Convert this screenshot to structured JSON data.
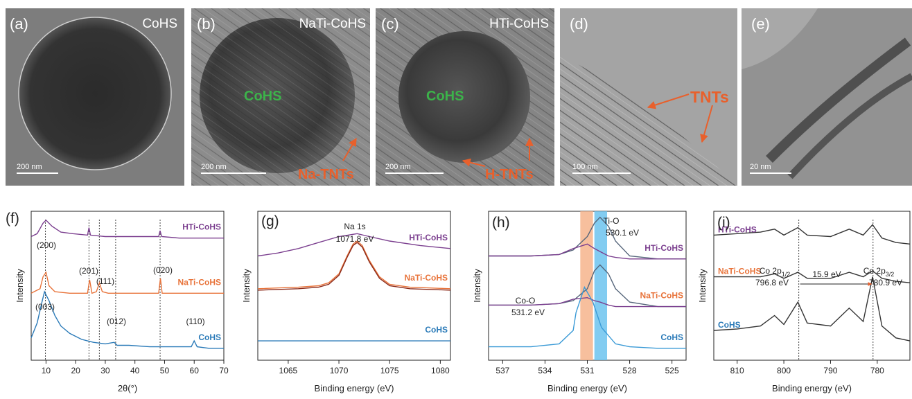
{
  "micrographs": [
    {
      "panel": "(a)",
      "sample": "CoHS",
      "scale_bar": "200 nm"
    },
    {
      "panel": "(b)",
      "sample": "NaTi-CoHS",
      "scale_bar": "200 nm",
      "core": "CoHS",
      "tubes": "Na-TNTs"
    },
    {
      "panel": "(c)",
      "sample": "HTi-CoHS",
      "scale_bar": "200 nm",
      "core": "CoHS",
      "tubes": "H-TNTs"
    },
    {
      "panel": "(d)",
      "scale_bar": "100 nm",
      "tubes": "TNTs"
    },
    {
      "panel": "(e)",
      "scale_bar": "20 nm"
    }
  ],
  "chart_data": [
    {
      "type": "line",
      "title": "(f)",
      "x_label": "2θ(°)",
      "y_label": "Intensity",
      "xlim": [
        5,
        70
      ],
      "ylim": [
        0,
        10
      ],
      "xticks": [
        10,
        20,
        30,
        40,
        50,
        60,
        70
      ],
      "ref_lines": [
        9.8,
        24.5,
        28,
        33.5,
        48.5
      ],
      "series": [
        {
          "name": "HTi-CoHS",
          "color": "#7b3f8f",
          "x": [
            5,
            7,
            9,
            10,
            12,
            15,
            19,
            24,
            24.5,
            25,
            30,
            35,
            40,
            48,
            48.5,
            49,
            55,
            60,
            70
          ],
          "values": [
            8.3,
            8.5,
            9.2,
            9.4,
            9.0,
            8.6,
            8.5,
            8.4,
            8.9,
            8.4,
            8.3,
            8.3,
            8.3,
            8.3,
            8.7,
            8.3,
            8.2,
            8.2,
            8.2
          ]
        },
        {
          "name": "NaTi-CoHS",
          "color": "#e8733a",
          "x": [
            5,
            8,
            9,
            10,
            11,
            13,
            18,
            23,
            24,
            24.7,
            25.5,
            27,
            28,
            29,
            31,
            35,
            40,
            47,
            48,
            48.6,
            49.2,
            52,
            60,
            70
          ],
          "values": [
            4.5,
            4.8,
            5.6,
            5.9,
            5.0,
            4.6,
            4.5,
            4.5,
            4.5,
            5.4,
            4.5,
            4.6,
            5.2,
            4.6,
            4.5,
            4.5,
            4.5,
            4.5,
            4.5,
            5.5,
            4.5,
            4.5,
            4.5,
            4.5
          ]
        },
        {
          "name": "CoHS",
          "color": "#2a7ab8",
          "x": [
            5,
            7,
            8.5,
            9.5,
            11,
            13,
            15,
            18,
            22,
            26,
            30,
            33,
            34,
            38,
            45,
            55,
            59,
            60,
            61,
            65,
            70
          ],
          "values": [
            1.5,
            2.5,
            3.8,
            4.6,
            4.0,
            3.0,
            2.3,
            1.8,
            1.4,
            1.2,
            1.1,
            1.2,
            1.0,
            1.0,
            0.9,
            0.9,
            0.9,
            1.3,
            0.9,
            0.8,
            0.8
          ]
        }
      ],
      "annotations": [
        {
          "text": "(200)"
        },
        {
          "text": "(201)"
        },
        {
          "text": "(111)"
        },
        {
          "text": "(020)"
        },
        {
          "text": "(003)"
        },
        {
          "text": "(012)"
        },
        {
          "text": "(110)"
        }
      ]
    },
    {
      "type": "line",
      "title": "(g)",
      "x_label": "Binding energy (eV)",
      "y_label": "Intensity",
      "xlim": [
        1062,
        1081
      ],
      "ylim": [
        0,
        10
      ],
      "xticks": [
        1065,
        1070,
        1075,
        1080
      ],
      "series": [
        {
          "name": "HTi-CoHS",
          "color": "#7b3f8f",
          "x": [
            1062,
            1064,
            1066,
            1068,
            1070,
            1071.8,
            1073,
            1075,
            1078,
            1081
          ],
          "values": [
            7.0,
            7.2,
            7.5,
            7.9,
            8.3,
            8.5,
            8.3,
            8.0,
            7.7,
            7.5
          ]
        },
        {
          "name": "NaTi-CoHS",
          "color": "#e8733a",
          "x": [
            1062,
            1066,
            1068,
            1069,
            1070,
            1070.8,
            1071.4,
            1071.8,
            1072.3,
            1073,
            1074,
            1075,
            1077,
            1081
          ],
          "values": [
            4.8,
            4.9,
            5.0,
            5.2,
            5.8,
            7.0,
            7.8,
            8.0,
            7.7,
            6.7,
            5.6,
            5.1,
            4.9,
            4.8
          ]
        },
        {
          "color": "#8b2a1a",
          "x": [
            1062,
            1066,
            1068,
            1069,
            1070,
            1070.8,
            1071.4,
            1071.8,
            1072.3,
            1073,
            1074,
            1075,
            1077,
            1081
          ],
          "values": [
            4.7,
            4.8,
            4.9,
            5.1,
            5.7,
            6.9,
            7.7,
            7.9,
            7.6,
            6.6,
            5.5,
            5.0,
            4.8,
            4.7
          ]
        },
        {
          "name": "CoHS",
          "color": "#2a7ab8",
          "x": [
            1062,
            1066,
            1070,
            1075,
            1081
          ],
          "values": [
            1.3,
            1.3,
            1.3,
            1.3,
            1.3
          ]
        }
      ],
      "annotations": [
        {
          "text": "Na 1s"
        },
        {
          "text": "1071.8 eV"
        }
      ]
    },
    {
      "type": "line",
      "title": "(h)",
      "x_label": "Binding energy (eV)",
      "y_label": "Intensity",
      "xlim": [
        538,
        524
      ],
      "ylim": [
        0,
        10
      ],
      "xticks": [
        537,
        534,
        531,
        528,
        525
      ],
      "bands": [
        {
          "range": [
            531.5,
            530.6
          ],
          "color": "#f6b48c"
        },
        {
          "range": [
            530.5,
            529.6
          ],
          "color": "#6cc3ee"
        }
      ],
      "series": [
        {
          "name": "HTi-CoHS",
          "color": "#55657a",
          "label_color": "#7b3f8f",
          "x": [
            538,
            535,
            533,
            532,
            531,
            530.5,
            530.1,
            529.5,
            529,
            528,
            526,
            524
          ],
          "values": [
            7.0,
            7.0,
            7.1,
            7.4,
            8.3,
            9.2,
            9.6,
            9.0,
            8.0,
            7.0,
            6.8,
            6.8
          ]
        },
        {
          "color": "#7b3f8f",
          "x": [
            538,
            535,
            533,
            532,
            531,
            530.5,
            530.1,
            529.5,
            529,
            528,
            526,
            524
          ],
          "values": [
            7.0,
            7.0,
            7.1,
            7.5,
            7.8,
            7.5,
            7.3,
            7.0,
            6.9,
            6.8,
            6.8,
            6.8
          ]
        },
        {
          "name": "NaTi-CoHS",
          "color": "#55657a",
          "label_color": "#e8733a",
          "x": [
            538,
            535,
            533,
            532,
            531,
            530.5,
            530.1,
            529.5,
            529,
            528,
            526,
            524
          ],
          "values": [
            3.7,
            3.7,
            3.8,
            4.0,
            4.8,
            6.0,
            6.4,
            5.8,
            4.8,
            3.9,
            3.6,
            3.6
          ]
        },
        {
          "color": "#7b3f8f",
          "x": [
            538,
            535,
            533,
            532,
            531,
            530.5,
            530.1,
            529.5,
            529,
            528,
            526,
            524
          ],
          "values": [
            3.7,
            3.7,
            3.8,
            4.1,
            4.2,
            4.0,
            3.9,
            3.7,
            3.6,
            3.6,
            3.6,
            3.6
          ]
        },
        {
          "name": "CoHS",
          "color": "#3a9ad6",
          "label_color": "#2a7ab8",
          "x": [
            538,
            535,
            533,
            532,
            531.8,
            531.2,
            530.6,
            530,
            529,
            528,
            526,
            524
          ],
          "values": [
            0.9,
            0.9,
            1.1,
            2.0,
            3.2,
            4.9,
            3.9,
            2.2,
            1.1,
            0.9,
            0.8,
            0.8
          ]
        }
      ],
      "annotations": [
        {
          "text": "Ti-O"
        },
        {
          "text": "530.1 eV"
        },
        {
          "text": "Co-O"
        },
        {
          "text": "531.2 eV"
        }
      ]
    },
    {
      "type": "line",
      "title": "(i)",
      "x_label": "Binding energy (eV)",
      "y_label": "Intensity",
      "xlim": [
        815,
        773
      ],
      "ylim": [
        0,
        10
      ],
      "xticks": [
        810,
        800,
        790,
        780
      ],
      "ref_lines": [
        796.8,
        780.9
      ],
      "series": [
        {
          "name": "HTi-CoHS",
          "color": "#333333",
          "label_color": "#7b3f8f",
          "x": [
            815,
            810,
            805,
            802,
            800,
            797,
            795,
            790,
            786,
            783,
            781,
            779,
            776,
            773
          ],
          "values": [
            8.4,
            8.5,
            8.6,
            8.8,
            8.4,
            8.9,
            8.4,
            8.3,
            8.8,
            8.4,
            9.1,
            8.2,
            7.9,
            7.8
          ]
        },
        {
          "name": "NaTi-CoHS",
          "color": "#333333",
          "label_color": "#e8733a",
          "x": [
            815,
            810,
            805,
            802,
            800,
            797,
            795,
            790,
            786,
            783,
            781,
            779,
            776,
            773
          ],
          "values": [
            5.6,
            5.6,
            5.6,
            5.8,
            5.5,
            5.9,
            5.5,
            5.5,
            5.9,
            5.6,
            6.0,
            5.5,
            5.3,
            5.2
          ]
        },
        {
          "name": "CoHS",
          "color": "#333333",
          "label_color": "#2a7ab8",
          "x": [
            815,
            810,
            805,
            802,
            800,
            797,
            795,
            790,
            786,
            783,
            781,
            779,
            776,
            773
          ],
          "values": [
            2.0,
            2.1,
            2.3,
            3.0,
            2.4,
            3.9,
            2.5,
            2.3,
            3.5,
            2.6,
            5.6,
            2.3,
            1.5,
            1.3
          ]
        }
      ],
      "annotations": [
        {
          "text": "Co 2p",
          "sub": "1/2"
        },
        {
          "text": "796.8 eV"
        },
        {
          "text": "15.9 eV"
        },
        {
          "text": "Co 2p",
          "sub": "3/2"
        },
        {
          "text": "780.9 eV"
        }
      ]
    }
  ]
}
